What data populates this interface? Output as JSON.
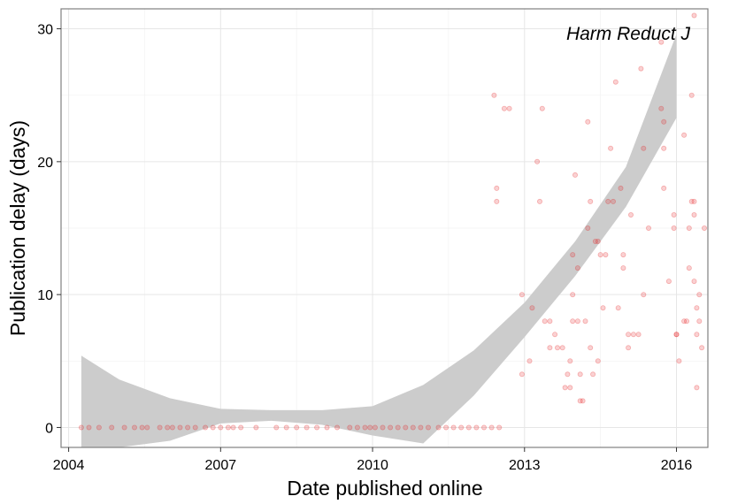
{
  "chart_data": {
    "type": "scatter",
    "title": "",
    "annotation": "Harm Reduct J",
    "xlabel": "Date published online",
    "ylabel": "Publication delay (days)",
    "xlim": [
      2003.85,
      2016.62
    ],
    "ylim": [
      -1.5,
      31.5
    ],
    "x_ticks": [
      2004,
      2007,
      2010,
      2013,
      2016
    ],
    "x_tick_labels": [
      "2004",
      "2007",
      "2010",
      "2013",
      "2016"
    ],
    "y_ticks": [
      0,
      10,
      20,
      30
    ],
    "y_tick_labels": [
      "0",
      "10",
      "20",
      "30"
    ],
    "grid": true,
    "point_color": "#e41a1c",
    "band_color": "#cccccc",
    "points": [
      [
        2004.25,
        0
      ],
      [
        2004.4,
        0
      ],
      [
        2004.6,
        0
      ],
      [
        2004.85,
        0
      ],
      [
        2005.1,
        0
      ],
      [
        2005.3,
        0
      ],
      [
        2005.45,
        0
      ],
      [
        2005.55,
        0
      ],
      [
        2005.8,
        0
      ],
      [
        2005.95,
        0
      ],
      [
        2006.05,
        0
      ],
      [
        2006.2,
        0
      ],
      [
        2006.35,
        0
      ],
      [
        2006.5,
        0
      ],
      [
        2006.7,
        0
      ],
      [
        2006.85,
        0
      ],
      [
        2007.0,
        0
      ],
      [
        2007.15,
        0
      ],
      [
        2007.25,
        0
      ],
      [
        2007.4,
        0
      ],
      [
        2007.7,
        0
      ],
      [
        2008.1,
        0
      ],
      [
        2008.3,
        0
      ],
      [
        2008.5,
        0
      ],
      [
        2008.7,
        0
      ],
      [
        2008.9,
        0
      ],
      [
        2009.1,
        0
      ],
      [
        2009.3,
        0
      ],
      [
        2009.55,
        0
      ],
      [
        2009.7,
        0
      ],
      [
        2009.85,
        0
      ],
      [
        2009.95,
        0
      ],
      [
        2010.05,
        0
      ],
      [
        2010.2,
        0
      ],
      [
        2010.35,
        0
      ],
      [
        2010.5,
        0
      ],
      [
        2010.65,
        0
      ],
      [
        2010.8,
        0
      ],
      [
        2010.95,
        0
      ],
      [
        2011.1,
        0
      ],
      [
        2011.3,
        0
      ],
      [
        2011.45,
        0
      ],
      [
        2011.6,
        0
      ],
      [
        2011.75,
        0
      ],
      [
        2011.9,
        0
      ],
      [
        2012.05,
        0
      ],
      [
        2012.2,
        0
      ],
      [
        2012.35,
        0
      ],
      [
        2012.5,
        0
      ],
      [
        2012.4,
        25
      ],
      [
        2012.6,
        24
      ],
      [
        2012.7,
        24
      ],
      [
        2012.45,
        18
      ],
      [
        2012.45,
        17
      ],
      [
        2012.95,
        10
      ],
      [
        2012.95,
        4
      ],
      [
        2013.1,
        5
      ],
      [
        2013.15,
        9
      ],
      [
        2013.25,
        20
      ],
      [
        2013.3,
        17
      ],
      [
        2013.35,
        24
      ],
      [
        2013.4,
        8
      ],
      [
        2013.5,
        8
      ],
      [
        2013.5,
        6
      ],
      [
        2013.6,
        7
      ],
      [
        2013.65,
        6
      ],
      [
        2013.75,
        6
      ],
      [
        2013.8,
        3
      ],
      [
        2013.9,
        3
      ],
      [
        2013.85,
        4
      ],
      [
        2013.9,
        5
      ],
      [
        2013.95,
        8
      ],
      [
        2013.95,
        10
      ],
      [
        2013.95,
        13
      ],
      [
        2014.0,
        19
      ],
      [
        2014.05,
        12
      ],
      [
        2014.05,
        8
      ],
      [
        2014.1,
        4
      ],
      [
        2014.15,
        2
      ],
      [
        2014.1,
        2
      ],
      [
        2014.2,
        8
      ],
      [
        2014.25,
        23
      ],
      [
        2014.25,
        15
      ],
      [
        2014.3,
        6
      ],
      [
        2014.3,
        17
      ],
      [
        2014.35,
        4
      ],
      [
        2014.4,
        14
      ],
      [
        2014.45,
        14
      ],
      [
        2014.45,
        5
      ],
      [
        2014.5,
        13
      ],
      [
        2014.55,
        9
      ],
      [
        2014.6,
        13
      ],
      [
        2014.65,
        17
      ],
      [
        2014.7,
        21
      ],
      [
        2014.75,
        17
      ],
      [
        2014.8,
        26
      ],
      [
        2014.85,
        9
      ],
      [
        2014.9,
        18
      ],
      [
        2014.95,
        13
      ],
      [
        2014.95,
        12
      ],
      [
        2015.05,
        7
      ],
      [
        2015.05,
        6
      ],
      [
        2015.1,
        16
      ],
      [
        2015.15,
        7
      ],
      [
        2015.25,
        7
      ],
      [
        2015.3,
        27
      ],
      [
        2015.35,
        21
      ],
      [
        2015.35,
        10
      ],
      [
        2015.45,
        15
      ],
      [
        2015.7,
        29
      ],
      [
        2015.7,
        24
      ],
      [
        2015.75,
        23
      ],
      [
        2015.75,
        21
      ],
      [
        2015.75,
        18
      ],
      [
        2015.85,
        11
      ],
      [
        2015.95,
        16
      ],
      [
        2015.95,
        15
      ],
      [
        2016.0,
        7
      ],
      [
        2016.0,
        7
      ],
      [
        2016.05,
        5
      ],
      [
        2016.15,
        22
      ],
      [
        2016.15,
        8
      ],
      [
        2016.2,
        8
      ],
      [
        2016.25,
        12
      ],
      [
        2016.25,
        15
      ],
      [
        2016.3,
        25
      ],
      [
        2016.3,
        17
      ],
      [
        2016.35,
        16
      ],
      [
        2016.35,
        31
      ],
      [
        2016.35,
        17
      ],
      [
        2016.35,
        11
      ],
      [
        2016.4,
        9
      ],
      [
        2016.4,
        7
      ],
      [
        2016.4,
        3
      ],
      [
        2016.45,
        10
      ],
      [
        2016.45,
        8
      ],
      [
        2016.5,
        6
      ],
      [
        2016.55,
        15
      ]
    ],
    "smooth_x": [
      2004.25,
      2005.0,
      2006.0,
      2007.0,
      2008.0,
      2009.0,
      2010.0,
      2011.0,
      2012.0,
      2013.0,
      2014.0,
      2015.0,
      2016.0
    ],
    "smooth_upper": [
      5.4,
      3.6,
      2.2,
      1.4,
      1.3,
      1.3,
      1.6,
      3.2,
      5.8,
      9.4,
      14.0,
      19.6,
      29.6
    ],
    "smooth_lower": [
      -1.5,
      -1.5,
      -1.0,
      0.3,
      0.5,
      0.2,
      -0.6,
      -1.2,
      2.4,
      6.8,
      11.4,
      16.6,
      23.3
    ]
  }
}
